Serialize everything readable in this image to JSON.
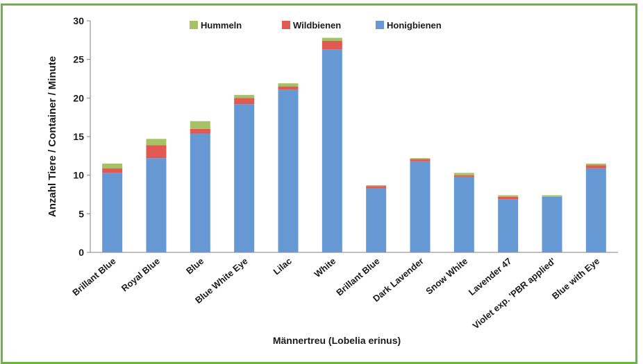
{
  "chart_data": {
    "type": "bar",
    "stacked": true,
    "xlabel": "Männertreu (Lobelia erinus)",
    "ylabel": "Anzahl Tiere / Container  / Minute",
    "ylim": [
      0,
      30
    ],
    "yticks": [
      0,
      5,
      10,
      15,
      20,
      25,
      30
    ],
    "grid": false,
    "legend_position": "top",
    "categories": [
      "Brillant Blue",
      "Royal Blue",
      "Blue",
      "Blue White Eye",
      "Lilac",
      "White",
      "Brillant Blue",
      "Dark Lavender",
      "Snow White",
      "Lavender 47",
      "Violet exp. 'PBR applied'",
      "Blue with Eye"
    ],
    "series": [
      {
        "name": "Honigbienen",
        "color": "#6699d4",
        "values": [
          10.3,
          12.2,
          15.4,
          19.2,
          21.1,
          26.3,
          8.3,
          11.8,
          9.8,
          6.9,
          7.2,
          10.9
        ]
      },
      {
        "name": "Wildbienen",
        "color": "#e05a52",
        "values": [
          0.6,
          1.7,
          0.6,
          0.8,
          0.4,
          1.1,
          0.3,
          0.3,
          0.2,
          0.3,
          0.0,
          0.4
        ]
      },
      {
        "name": "Hummeln",
        "color": "#a6c265",
        "values": [
          0.6,
          0.8,
          1.0,
          0.4,
          0.4,
          0.4,
          0.1,
          0.1,
          0.3,
          0.2,
          0.2,
          0.2
        ]
      }
    ],
    "legend_order": [
      "Hummeln",
      "Wildbienen",
      "Honigbienen"
    ]
  }
}
